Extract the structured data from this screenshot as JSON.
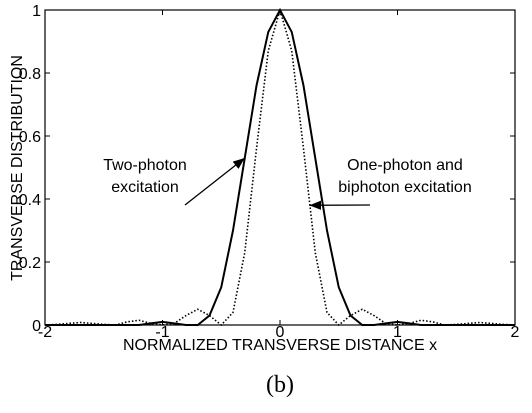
{
  "chart_data": {
    "type": "line",
    "xlabel": "NORMALIZED TRANSVERSE DISTANCE x",
    "ylabel": "TRANSVERSE DISTRIBUTION",
    "caption": "(b)",
    "x": [
      -2,
      -1.9,
      -1.8,
      -1.7,
      -1.6,
      -1.5,
      -1.4,
      -1.3,
      -1.2,
      -1.1,
      -1,
      -0.9,
      -0.8,
      -0.7,
      -0.6,
      -0.5,
      -0.4,
      -0.3,
      -0.2,
      -0.1,
      0,
      0.1,
      0.2,
      0.3,
      0.4,
      0.5,
      0.6,
      0.7,
      0.8,
      0.9,
      1,
      1.1,
      1.2,
      1.3,
      1.4,
      1.5,
      1.6,
      1.7,
      1.8,
      1.9,
      2
    ],
    "series": [
      {
        "name": "Two-photon excitation",
        "color": "#000000",
        "dash": "solid",
        "values": [
          0,
          0,
          0,
          0,
          0,
          0,
          0,
          0,
          0,
          0.005,
          0.01,
          0.005,
          0,
          0,
          0.03,
          0.12,
          0.3,
          0.53,
          0.76,
          0.93,
          1,
          0.93,
          0.76,
          0.53,
          0.3,
          0.12,
          0.03,
          0,
          0,
          0.005,
          0.01,
          0.005,
          0,
          0,
          0,
          0,
          0,
          0,
          0,
          0,
          0
        ]
      },
      {
        "name": "One-photon and biphoton excitation",
        "color": "#000000",
        "dash": "dotted",
        "values": [
          0,
          0.002,
          0.005,
          0.008,
          0.005,
          0.002,
          0,
          0.01,
          0.015,
          0.005,
          0,
          0.005,
          0.03,
          0.05,
          0.03,
          0,
          0.04,
          0.23,
          0.56,
          0.87,
          1,
          0.87,
          0.56,
          0.23,
          0.04,
          0,
          0.03,
          0.05,
          0.03,
          0.005,
          0,
          0.005,
          0.015,
          0.01,
          0,
          0.002,
          0.005,
          0.008,
          0.005,
          0.002,
          0
        ]
      }
    ],
    "annotations": [
      {
        "lines": [
          "Two-photon",
          "excitation"
        ]
      },
      {
        "lines": [
          "One-photon and",
          "biphoton excitation"
        ]
      }
    ],
    "xlim": [
      -2,
      2
    ],
    "ylim": [
      0,
      1
    ],
    "xticks": [
      -2,
      -1,
      0,
      1,
      2
    ],
    "yticks": [
      0,
      0.2,
      0.4,
      0.6,
      0.8,
      1
    ]
  }
}
